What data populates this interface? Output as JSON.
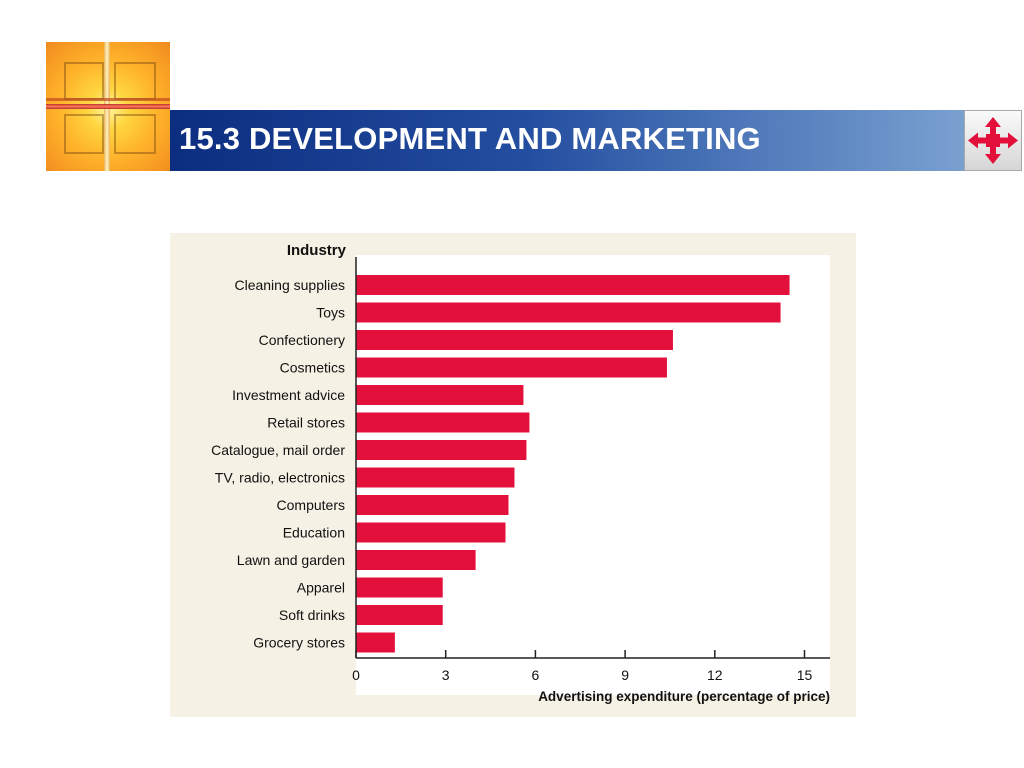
{
  "header": {
    "title": "15.3 DEVELOPMENT AND MARKETING",
    "logo_icon": "cross-window-logo-icon",
    "nav_icon": "four-way-arrows-icon"
  },
  "colors": {
    "title_bar_dark": "#0c2d80",
    "title_bar_light": "#7aa0cf",
    "bar": "#e3103c",
    "panel": "#f5f1e4",
    "nav_arrow": "#e3103c"
  },
  "chart_data": {
    "type": "bar",
    "orientation": "horizontal",
    "category_header": "Industry",
    "categories": [
      "Cleaning supplies",
      "Toys",
      "Confectionery",
      "Cosmetics",
      "Investment advice",
      "Retail stores",
      "Catalogue, mail order",
      "TV, radio, electronics",
      "Computers",
      "Education",
      "Lawn and garden",
      "Apparel",
      "Soft drinks",
      "Grocery stores"
    ],
    "values": [
      14.5,
      14.2,
      10.6,
      10.4,
      5.6,
      5.8,
      5.7,
      5.3,
      5.1,
      5.0,
      4.0,
      2.9,
      2.9,
      1.3
    ],
    "xlabel": "Advertising expenditure (percentage of price)",
    "xticks": [
      "0",
      "3",
      "6",
      "9",
      "12",
      "15"
    ],
    "xlim": [
      0,
      15.5
    ],
    "grid": false,
    "legend": "none"
  }
}
